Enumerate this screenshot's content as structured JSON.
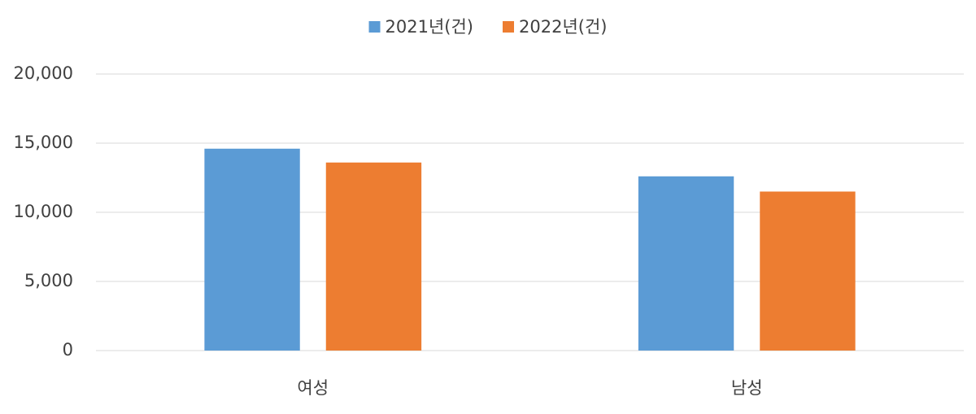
{
  "chart_data": {
    "type": "bar",
    "categories": [
      "여성",
      "남성"
    ],
    "series": [
      {
        "name": "2021년(건)",
        "color": "#5b9bd5",
        "values": [
          14600,
          12600
        ]
      },
      {
        "name": "2022년(건)",
        "color": "#ed7d31",
        "values": [
          13600,
          11500
        ]
      }
    ],
    "ylim": [
      0,
      20000
    ],
    "yticks": [
      0,
      {
        "value": 5000,
        "label": "5,000"
      },
      {
        "value": 10000,
        "label": "10,000"
      },
      {
        "value": 15000,
        "label": "15,000"
      },
      {
        "value": 20000,
        "label": "20,000"
      }
    ],
    "grid": true,
    "legend": "top"
  }
}
